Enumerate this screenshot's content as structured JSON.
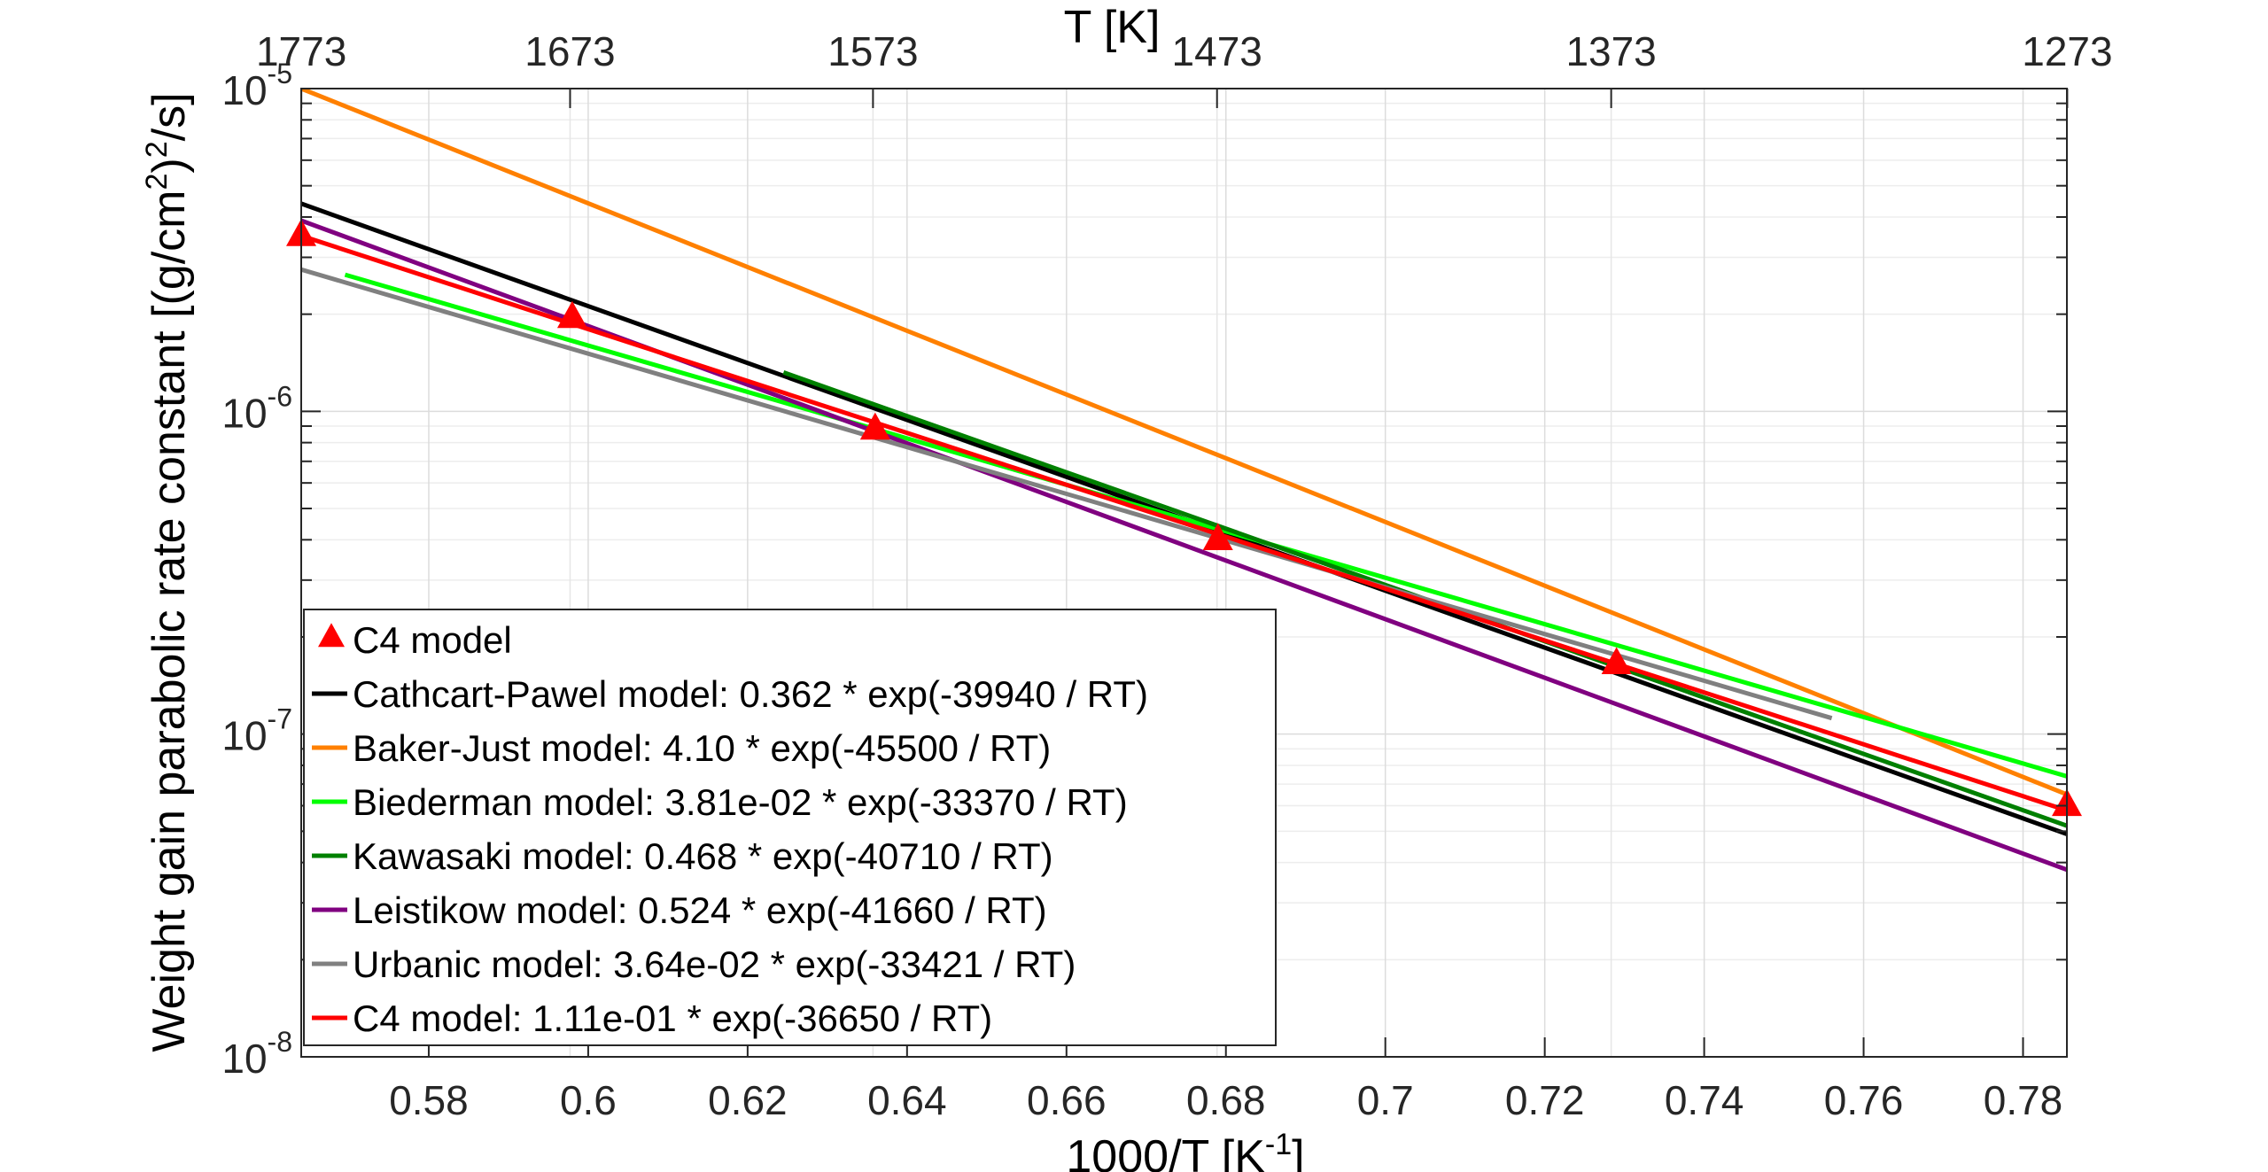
{
  "chart_data": {
    "type": "line",
    "xlabel": "1000/T [K^-1]",
    "xlabel_base": "1000/T [K",
    "xlabel_sup": "-1",
    "xlabel_close": "]",
    "ylabel": "Weight gain parabolic rate constant [(g/cm^2)^2/s]",
    "ylabel_p1": "Weight gain parabolic rate constant [(g/cm",
    "ylabel_sup1": "2",
    "ylabel_p2": ")",
    "ylabel_sup2": "2",
    "ylabel_p3": "/s]",
    "top_xlabel": "T [K]",
    "xlim": [
      0.564,
      0.7855
    ],
    "ylim": [
      1e-08,
      1e-05
    ],
    "yscale": "log",
    "grid": true,
    "x_ticks": [
      0.58,
      0.6,
      0.62,
      0.64,
      0.66,
      0.68,
      0.7,
      0.72,
      0.74,
      0.76,
      0.78
    ],
    "x_tick_labels": [
      "0.58",
      "0.6",
      "0.62",
      "0.64",
      "0.66",
      "0.68",
      "0.7",
      "0.72",
      "0.74",
      "0.76",
      "0.78"
    ],
    "y_ticks": [
      1e-05,
      1e-06,
      1e-07,
      1e-08
    ],
    "y_tick_labels": [
      {
        "base": "10",
        "exp": "-5"
      },
      {
        "base": "10",
        "exp": "-6"
      },
      {
        "base": "10",
        "exp": "-7"
      },
      {
        "base": "10",
        "exp": "-8"
      }
    ],
    "top_ticks": [
      1773,
      1673,
      1573,
      1473,
      1373,
      1273
    ],
    "top_tick_labels": [
      "1773",
      "1673",
      "1573",
      "1473",
      "1373",
      "1273"
    ],
    "legend_position": "bottom-left",
    "series": [
      {
        "name": "C4 model",
        "kind": "markers",
        "marker": "triangle",
        "color": "#ff0000",
        "x": [
          0.564,
          0.598,
          0.636,
          0.679,
          0.729,
          0.7855
        ],
        "y": [
          3.5e-06,
          1.95e-06,
          8.8e-07,
          4e-07,
          1.65e-07,
          6e-08
        ]
      },
      {
        "name": "Cathcart-Pawel model: 0.362 * exp(-39940 / RT)",
        "kind": "line",
        "color": "#000000",
        "x": [
          0.564,
          0.7855
        ],
        "y": [
          4.4e-06,
          4.9e-08
        ]
      },
      {
        "name": "Baker-Just model: 4.10 * exp(-45500 / RT)",
        "kind": "line",
        "color": "#ff8000",
        "x": [
          0.564,
          0.7855
        ],
        "y": [
          1e-05,
          6.5e-08
        ]
      },
      {
        "name": "Biederman model: 3.81e-02 * exp(-33370 / RT)",
        "kind": "line",
        "color": "#00ff00",
        "x": [
          0.5695,
          0.7855
        ],
        "y": [
          2.65e-06,
          7.4e-08
        ]
      },
      {
        "name": "Kawasaki model: 0.468 * exp(-40710 / RT)",
        "kind": "line",
        "color": "#008000",
        "x": [
          0.6245,
          0.7855
        ],
        "y": [
          1.32e-06,
          5.2e-08
        ]
      },
      {
        "name": "Leistikow model: 0.524 * exp(-41660 / RT)",
        "kind": "line",
        "color": "#800080",
        "x": [
          0.564,
          0.7855
        ],
        "y": [
          3.9e-06,
          3.8e-08
        ]
      },
      {
        "name": "Urbanic model: 3.64e-02 * exp(-33421 / RT)",
        "kind": "line",
        "color": "#808080",
        "x": [
          0.564,
          0.756
        ],
        "y": [
          2.75e-06,
          1.12e-07
        ]
      },
      {
        "name": "C4 model: 1.11e-01 * exp(-36650 / RT)",
        "kind": "line",
        "color": "#ff0000",
        "x": [
          0.564,
          0.7855
        ],
        "y": [
          3.5e-06,
          5.8e-08
        ]
      }
    ]
  }
}
